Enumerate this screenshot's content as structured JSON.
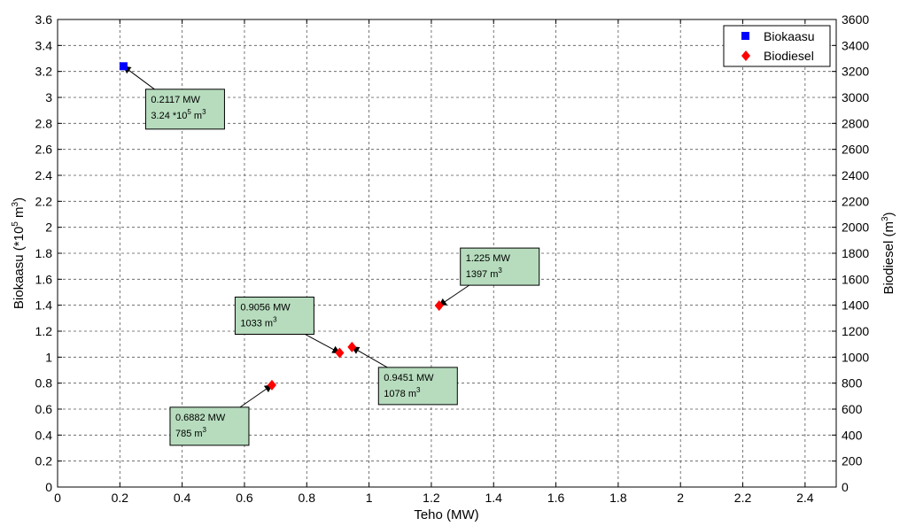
{
  "chart_data": {
    "type": "scatter",
    "xlabel": "Teho (MW)",
    "ylabel_left": "Biokaasu (*10^5 m^3)",
    "ylabel_right": "Biodiesel (m^3)",
    "xlim": [
      0,
      2.5
    ],
    "ylim_left": [
      0,
      3.6
    ],
    "ylim_right": [
      0,
      3600
    ],
    "x_ticks": [
      0,
      0.2,
      0.4,
      0.6,
      0.8,
      1,
      1.2,
      1.4,
      1.6,
      1.8,
      2,
      2.2,
      2.4
    ],
    "x_tick_labels": [
      "0",
      "0.2",
      "0.4",
      "0.6",
      "0.8",
      "1",
      "1.2",
      "1.4",
      "1.6",
      "1.8",
      "2",
      "2.2",
      "2.4"
    ],
    "y_left_ticks": [
      0,
      0.2,
      0.4,
      0.6,
      0.8,
      1,
      1.2,
      1.4,
      1.6,
      1.8,
      2,
      2.2,
      2.4,
      2.6,
      2.8,
      3,
      3.2,
      3.4,
      3.6
    ],
    "y_left_tick_labels": [
      "0",
      "0.2",
      "0.4",
      "0.6",
      "0.8",
      "1",
      "1.2",
      "1.4",
      "1.6",
      "1.8",
      "2",
      "2.2",
      "2.4",
      "2.6",
      "2.8",
      "3",
      "3.2",
      "3.4",
      "3.6"
    ],
    "y_right_ticks": [
      0,
      200,
      400,
      600,
      800,
      1000,
      1200,
      1400,
      1600,
      1800,
      2000,
      2200,
      2400,
      2600,
      2800,
      3000,
      3200,
      3400,
      3600
    ],
    "y_right_tick_labels": [
      "0",
      "200",
      "400",
      "600",
      "800",
      "1000",
      "1200",
      "1400",
      "1600",
      "1800",
      "2000",
      "2200",
      "2400",
      "2600",
      "2800",
      "3000",
      "3200",
      "3400",
      "3600"
    ],
    "grid": true,
    "legend_position": "top-right",
    "series": [
      {
        "name": "Biokaasu",
        "axis": "left",
        "marker": "square",
        "color": "#0000ff",
        "points": [
          {
            "x": 0.2117,
            "y": 3.24
          }
        ]
      },
      {
        "name": "Biodiesel",
        "axis": "right",
        "marker": "diamond",
        "color": "#ff0000",
        "points": [
          {
            "x": 0.6882,
            "y": 785
          },
          {
            "x": 0.9056,
            "y": 1033
          },
          {
            "x": 0.9451,
            "y": 1078
          },
          {
            "x": 1.225,
            "y": 1397
          }
        ]
      }
    ],
    "annotations": [
      {
        "line1": "0.2117 MW",
        "line2": "3.24 *10^5 m^3",
        "series": 0,
        "point": 0
      },
      {
        "line1": "0.6882 MW",
        "line2": "785 m^3",
        "series": 1,
        "point": 0
      },
      {
        "line1": "0.9056 MW",
        "line2": "1033 m^3",
        "series": 1,
        "point": 1
      },
      {
        "line1": "0.9451 MW",
        "line2": "1078 m^3",
        "series": 1,
        "point": 2
      },
      {
        "line1": "1.225 MW",
        "line2": "1397 m^3",
        "series": 1,
        "point": 3
      }
    ],
    "colors": {
      "annotation_fill": "#b6dcbd",
      "grid": "#555555"
    }
  }
}
